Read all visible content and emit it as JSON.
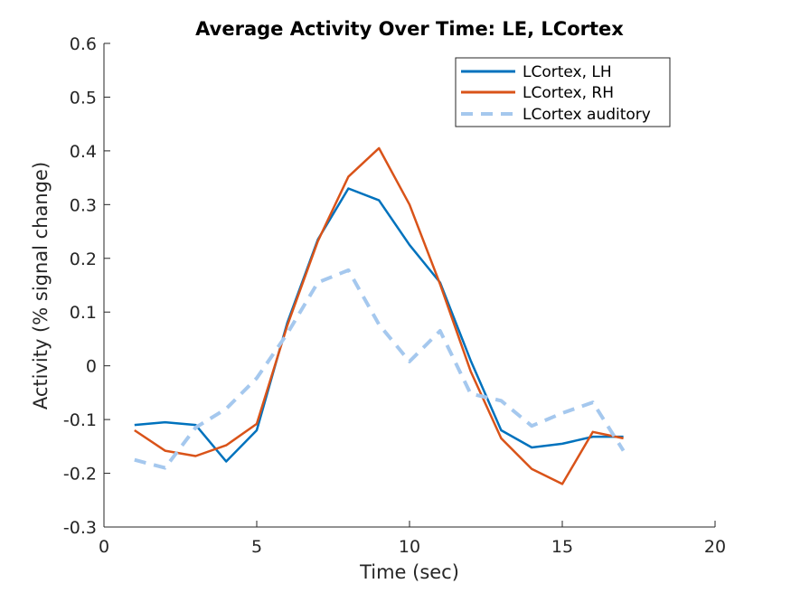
{
  "chart_data": {
    "type": "line",
    "title": "Average Activity Over Time: LE, LCortex",
    "xlabel": "Time (sec)",
    "ylabel": "Activity (% signal change)",
    "xlim": [
      0,
      20
    ],
    "ylim": [
      -0.3,
      0.6
    ],
    "xticks": [
      0,
      5,
      10,
      15,
      20
    ],
    "yticks": [
      -0.3,
      -0.2,
      -0.1,
      0,
      0.1,
      0.2,
      0.3,
      0.4,
      0.5,
      0.6
    ],
    "xtick_labels": [
      "0",
      "5",
      "10",
      "15",
      "20"
    ],
    "ytick_labels": [
      "-0.3",
      "-0.2",
      "-0.1",
      "0",
      "0.1",
      "0.2",
      "0.3",
      "0.4",
      "0.5",
      "0.6"
    ],
    "grid": false,
    "legend_position": "top-right",
    "x": [
      1,
      2,
      3,
      4,
      5,
      6,
      7,
      8,
      9,
      10,
      11,
      12,
      13,
      14,
      15,
      16,
      17
    ],
    "series": [
      {
        "name": "LCortex, LH",
        "color": "#0072BD",
        "style": "solid",
        "values": [
          -0.11,
          -0.105,
          -0.11,
          -0.178,
          -0.12,
          0.08,
          0.235,
          0.33,
          0.308,
          0.225,
          0.155,
          0.01,
          -0.12,
          -0.152,
          -0.145,
          -0.132,
          -0.132
        ]
      },
      {
        "name": "LCortex, RH",
        "color": "#D95319",
        "style": "solid",
        "values": [
          -0.12,
          -0.158,
          -0.168,
          -0.148,
          -0.108,
          0.075,
          0.232,
          0.352,
          0.405,
          0.3,
          0.152,
          -0.01,
          -0.135,
          -0.192,
          -0.22,
          -0.123,
          -0.135
        ]
      },
      {
        "name": "LCortex auditory",
        "color": "#A5C8EE",
        "style": "dashed",
        "values": [
          -0.175,
          -0.19,
          -0.115,
          -0.08,
          -0.023,
          0.06,
          0.155,
          0.178,
          0.077,
          0.008,
          0.065,
          -0.052,
          -0.065,
          -0.112,
          -0.088,
          -0.068,
          -0.158
        ]
      }
    ]
  }
}
